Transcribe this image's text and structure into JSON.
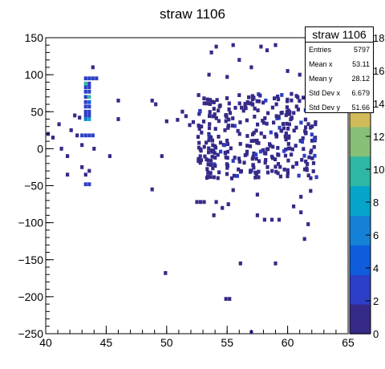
{
  "chart_data": {
    "type": "heatmap",
    "title": "straw 1106",
    "xlim": [
      40,
      65
    ],
    "ylim": [
      -250,
      150
    ],
    "x_ticks": [
      "40",
      "45",
      "50",
      "55",
      "60",
      "65"
    ],
    "y_ticks": [
      "150",
      "100",
      "50",
      "0",
      "−50",
      "−100",
      "−150",
      "−200",
      "−250"
    ],
    "colorbar_ticks": [
      "0",
      "2",
      "4",
      "6",
      "8",
      "10",
      "12",
      "14",
      "16",
      "18"
    ],
    "colorbar_range": [
      0,
      18
    ],
    "palette": [
      "#352a87",
      "#2c3fc6",
      "#0f5cdd",
      "#1481d6",
      "#06a4ca",
      "#2eb7a4",
      "#87bf77",
      "#d1bb59",
      "#fec832",
      "#f9fb0e"
    ],
    "stats": {
      "title": "straw 1106",
      "entries": [
        {
          "label": "Entries",
          "value": "5797"
        },
        {
          "label": "Mean x",
          "value": "53.11"
        },
        {
          "label": "Mean y",
          "value": "28.12"
        },
        {
          "label": "Std Dev x",
          "value": "6.679"
        },
        {
          "label": "Std Dev y",
          "value": "51.66"
        }
      ]
    },
    "bins": [
      [
        40.2,
        20,
        1
      ],
      [
        40.6,
        15,
        1
      ],
      [
        41.1,
        33,
        1
      ],
      [
        41.3,
        0,
        1
      ],
      [
        41.8,
        -10,
        1
      ],
      [
        42.1,
        25,
        1
      ],
      [
        42.6,
        18,
        1
      ],
      [
        41.8,
        -35,
        1
      ],
      [
        43.0,
        -25,
        1
      ],
      [
        42.4,
        45,
        1
      ],
      [
        42.8,
        42,
        1
      ],
      [
        43.0,
        18,
        2
      ],
      [
        43.3,
        18,
        2
      ],
      [
        43.6,
        18,
        2
      ],
      [
        43.9,
        18,
        2
      ],
      [
        43.3,
        40,
        6
      ],
      [
        43.6,
        40,
        8
      ],
      [
        43.3,
        45,
        3
      ],
      [
        43.6,
        45,
        3
      ],
      [
        43.3,
        50,
        2
      ],
      [
        43.6,
        50,
        3
      ],
      [
        43.3,
        57,
        2
      ],
      [
        43.6,
        57,
        2
      ],
      [
        43.3,
        63,
        2
      ],
      [
        43.6,
        63,
        4
      ],
      [
        43.6,
        70,
        10
      ],
      [
        43.3,
        70,
        3
      ],
      [
        43.3,
        77,
        2
      ],
      [
        43.6,
        77,
        2
      ],
      [
        43.3,
        83,
        2
      ],
      [
        43.6,
        83,
        2
      ],
      [
        43.3,
        88,
        9
      ],
      [
        43.6,
        88,
        3
      ],
      [
        43.3,
        95,
        2
      ],
      [
        43.6,
        95,
        2
      ],
      [
        43.9,
        95,
        2
      ],
      [
        44.2,
        95,
        2
      ],
      [
        43.9,
        110,
        1
      ],
      [
        43.3,
        -48,
        2
      ],
      [
        43.6,
        -48,
        2
      ],
      [
        43.6,
        -30,
        1
      ],
      [
        43.3,
        -35,
        1
      ],
      [
        43.0,
        5,
        1
      ],
      [
        44.0,
        0,
        1
      ],
      [
        46.0,
        65,
        1
      ],
      [
        46.0,
        40,
        1
      ],
      [
        45.3,
        -10,
        1
      ],
      [
        48.8,
        65,
        1
      ],
      [
        49.1,
        60,
        1
      ],
      [
        48.8,
        -55,
        1
      ],
      [
        49.6,
        -10,
        1
      ],
      [
        49.9,
        -168,
        1
      ],
      [
        50.0,
        37,
        1
      ],
      [
        50.9,
        39,
        1
      ],
      [
        51.3,
        50,
        1
      ],
      [
        51.6,
        44,
        1
      ],
      [
        51.9,
        32,
        1
      ],
      [
        52.2,
        36,
        1
      ],
      [
        52.5,
        -72,
        1
      ],
      [
        52.8,
        -72,
        1
      ],
      [
        53.1,
        -72,
        1
      ],
      [
        54.1,
        -72,
        1
      ],
      [
        53.9,
        -90,
        1
      ],
      [
        54.6,
        -80,
        1
      ],
      [
        55.1,
        -75,
        1
      ],
      [
        55.5,
        -56,
        1
      ],
      [
        56.1,
        -155,
        1
      ],
      [
        54.9,
        -203,
        1
      ],
      [
        55.2,
        -203,
        1
      ],
      [
        57.0,
        -248,
        1
      ],
      [
        57.5,
        -62,
        1
      ],
      [
        57.5,
        -90,
        1
      ],
      [
        58.1,
        -96,
        1
      ],
      [
        58.7,
        -96,
        1
      ],
      [
        59.3,
        -96,
        1
      ],
      [
        59.0,
        -155,
        1
      ],
      [
        60.5,
        -78,
        1
      ],
      [
        61.1,
        -65,
        1
      ],
      [
        61.1,
        -86,
        1
      ],
      [
        61.4,
        -122,
        1
      ],
      [
        61.7,
        -102,
        1
      ],
      [
        61.9,
        -57,
        1
      ],
      [
        55.5,
        140,
        1
      ],
      [
        57.8,
        138,
        1
      ],
      [
        58.3,
        133,
        1
      ],
      [
        59.0,
        140,
        1
      ],
      [
        54.1,
        138,
        1
      ],
      [
        53.7,
        130,
        1
      ],
      [
        56.0,
        120,
        1
      ],
      [
        57.0,
        110,
        1
      ],
      [
        60.0,
        105,
        1
      ],
      [
        61.0,
        100,
        1
      ],
      [
        62.0,
        108,
        1
      ],
      [
        53.5,
        100,
        1
      ],
      [
        55.0,
        97,
        1
      ]
    ]
  }
}
